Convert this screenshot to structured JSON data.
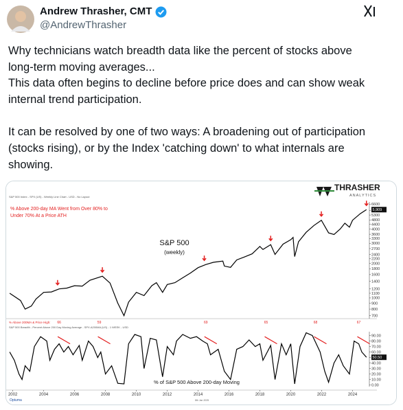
{
  "author": {
    "name": "Andrew Thrasher, CMT",
    "handle": "@AndrewThrasher"
  },
  "text": {
    "lines": [
      "Why technicians watch breadth data like the percent of stocks above",
      "long-term moving averages...",
      "This data often begins to decline before price does and can show weak",
      "internal trend participation.",
      "It can be resolved by one of two ways: A broadening out of participation",
      "(stocks rising), or by the Index 'catching down' to what internals are",
      "showing."
    ]
  },
  "image": {
    "logo": "THRASHER",
    "logo_sub": "ANALYTICS",
    "source": "Optuma",
    "date": "8th Jan 2025"
  },
  "chart_data": [
    {
      "type": "line",
      "header": "S&P 500 Index - SPX (US) - Weekly Line Chart - USD - No Layout",
      "title": "S&P 500",
      "subtitle": "(weekly)",
      "annotation": "% Above 200-day MA Went from Over 80% to Under 70% At a Price ATH",
      "log_scale": true,
      "x": [
        2001.8,
        2002.5,
        2002.8,
        2003.2,
        2003.5,
        2004,
        2004.5,
        2005,
        2005.5,
        2006,
        2006.5,
        2007,
        2007.8,
        2008.3,
        2008.8,
        2009.2,
        2009.5,
        2010,
        2010.5,
        2011,
        2011.3,
        2011.7,
        2012,
        2012.5,
        2013,
        2013.5,
        2014,
        2014.5,
        2015,
        2015.6,
        2015.7,
        2016.1,
        2016.5,
        2017,
        2017.5,
        2018,
        2018.2,
        2018.7,
        2018.98,
        2019.5,
        2020,
        2020.15,
        2020.25,
        2020.5,
        2021,
        2021.5,
        2021.98,
        2022.45,
        2022.8,
        2023.2,
        2023.5,
        2023.8,
        2024,
        2024.5,
        2024.9
      ],
      "series": [
        {
          "name": "S&P 500",
          "color": "#000000",
          "values": [
            1100,
            950,
            800,
            850,
            980,
            1120,
            1130,
            1200,
            1220,
            1280,
            1270,
            1430,
            1550,
            1350,
            900,
            700,
            920,
            1120,
            1050,
            1280,
            1360,
            1120,
            1310,
            1360,
            1500,
            1650,
            1840,
            1960,
            2050,
            2100,
            1900,
            1850,
            2150,
            2280,
            2430,
            2820,
            2650,
            2920,
            2400,
            2950,
            3230,
            3380,
            2300,
            3100,
            3750,
            4300,
            4770,
            3700,
            3580,
            4000,
            4500,
            4150,
            4770,
            5450,
            5909
          ]
        }
      ],
      "current": {
        "value": 5909,
        "label": "5,909"
      },
      "xlim": [
        2001.75,
        2025.0
      ],
      "ylim": [
        660,
        6900
      ],
      "yticks": [
        700,
        800,
        900,
        1000,
        1100,
        1200,
        1400,
        1600,
        1800,
        2000,
        2200,
        2400,
        2700,
        3000,
        3300,
        3600,
        4000,
        4400,
        4800,
        5300,
        5800,
        6600
      ],
      "peaks": [
        2004.9,
        2007.8,
        2014.4,
        2018.7,
        2021.98,
        2024.9
      ]
    },
    {
      "type": "line",
      "header": "S&P 500 Breadth - Percent Above 200 Day Moving Average - SPX.A200MA (US) - 1 WEEK - USD",
      "title": "% of S&P 500 Above 200-day Moving",
      "annotation_title": "% Above 200MA & Price High:",
      "annotations": [
        {
          "x": 2005,
          "label": 66
        },
        {
          "x": 2007.6,
          "label": 59
        },
        {
          "x": 2014.5,
          "label": 69
        },
        {
          "x": 2018.4,
          "label": 65
        },
        {
          "x": 2021.6,
          "label": 68
        },
        {
          "x": 2024.4,
          "label": 67
        }
      ],
      "x": [
        2001.8,
        2002.1,
        2002.4,
        2002.6,
        2002.8,
        2003.1,
        2003.4,
        2003.8,
        2004.2,
        2004.4,
        2004.7,
        2005.0,
        2005.3,
        2005.6,
        2005.9,
        2006.3,
        2006.5,
        2006.9,
        2007.2,
        2007.5,
        2007.7,
        2008.0,
        2008.4,
        2008.8,
        2009.2,
        2009.5,
        2009.9,
        2010.3,
        2010.5,
        2010.9,
        2011.3,
        2011.7,
        2012.0,
        2012.4,
        2012.6,
        2013.0,
        2013.5,
        2013.9,
        2014.3,
        2014.6,
        2014.8,
        2015.3,
        2015.7,
        2016.1,
        2016.5,
        2016.9,
        2017.3,
        2017.7,
        2018.0,
        2018.2,
        2018.7,
        2018.98,
        2019.4,
        2019.7,
        2020.0,
        2020.25,
        2020.6,
        2021.0,
        2021.4,
        2021.9,
        2022.2,
        2022.45,
        2022.8,
        2023.1,
        2023.4,
        2023.8,
        2024.1,
        2024.4,
        2024.6,
        2024.9
      ],
      "series": [
        {
          "name": "% Above 200-day",
          "color": "#000000",
          "values": [
            60,
            45,
            20,
            10,
            35,
            25,
            70,
            88,
            80,
            45,
            65,
            75,
            60,
            70,
            55,
            72,
            45,
            80,
            70,
            50,
            60,
            20,
            35,
            3,
            2,
            75,
            92,
            88,
            30,
            85,
            82,
            15,
            70,
            55,
            80,
            92,
            85,
            88,
            80,
            75,
            55,
            65,
            25,
            10,
            65,
            70,
            82,
            70,
            75,
            45,
            72,
            10,
            75,
            55,
            75,
            2,
            70,
            95,
            90,
            60,
            25,
            5,
            40,
            55,
            35,
            20,
            80,
            75,
            60,
            50.5
          ]
        }
      ],
      "current": {
        "value": 50.5,
        "label": "50.50"
      },
      "xlim": [
        2001.75,
        2025.0
      ],
      "ylim": [
        -3,
        97
      ],
      "yticks": [
        {
          "value": 0,
          "label": "0.00"
        },
        {
          "value": 10,
          "label": "10.00"
        },
        {
          "value": 20,
          "label": "20.00"
        },
        {
          "value": 30,
          "label": "30.00"
        },
        {
          "value": 40,
          "label": "40.00"
        },
        {
          "value": 50,
          "label": "50.00"
        },
        {
          "value": 60,
          "label": "60.00"
        },
        {
          "value": 70,
          "label": "70.00"
        },
        {
          "value": 80,
          "label": "80.00"
        },
        {
          "value": 90,
          "label": "90.00"
        }
      ],
      "xticks": [
        2002,
        2004,
        2006,
        2008,
        2010,
        2012,
        2014,
        2016,
        2018,
        2020,
        2022,
        2024
      ]
    }
  ]
}
